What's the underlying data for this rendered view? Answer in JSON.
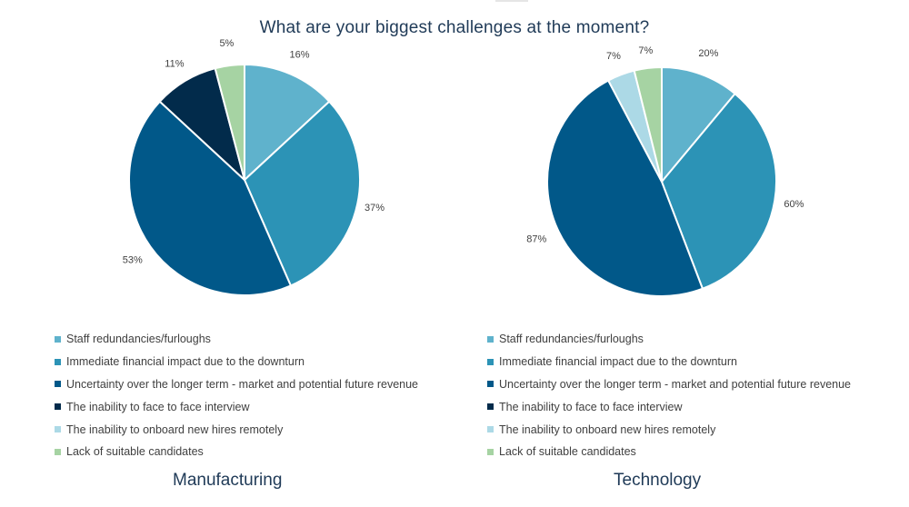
{
  "title": "What are your biggest challenges at the moment?",
  "chart_data": [
    {
      "type": "pie",
      "name": "Manufacturing",
      "categories": [
        "Staff redundancies/furloughs",
        "Immediate financial impact due to the downturn",
        "Uncertainty over the longer term  - market and potential future revenue",
        "The inability to face to face interview",
        "The inability to onboard new hires remotely",
        "Lack of suitable candidates"
      ],
      "values": [
        16,
        37,
        53,
        11,
        0,
        5
      ],
      "labels": [
        "16%",
        "37%",
        "53%",
        "11%",
        "",
        "5%"
      ],
      "colors": [
        "#5fb2cc",
        "#2c93b6",
        "#015889",
        "#022b4b",
        "#acd9e6",
        "#a6d3a3"
      ],
      "legend": "bottom"
    },
    {
      "type": "pie",
      "name": "Technology",
      "categories": [
        "Staff redundancies/furloughs",
        "Immediate financial impact due to the downturn",
        "Uncertainty over the longer term - market and potential future revenue",
        "The inability to face to face interview",
        "The inability to onboard new hires remotely",
        "Lack of suitable candidates"
      ],
      "values": [
        20,
        60,
        87,
        0,
        7,
        7
      ],
      "labels": [
        "20%",
        "60%",
        "87%",
        "",
        "7%",
        "7%"
      ],
      "colors": [
        "#5fb2cc",
        "#2c93b6",
        "#015889",
        "#022b4b",
        "#acd9e6",
        "#a6d3a3"
      ],
      "legend": "bottom"
    }
  ]
}
